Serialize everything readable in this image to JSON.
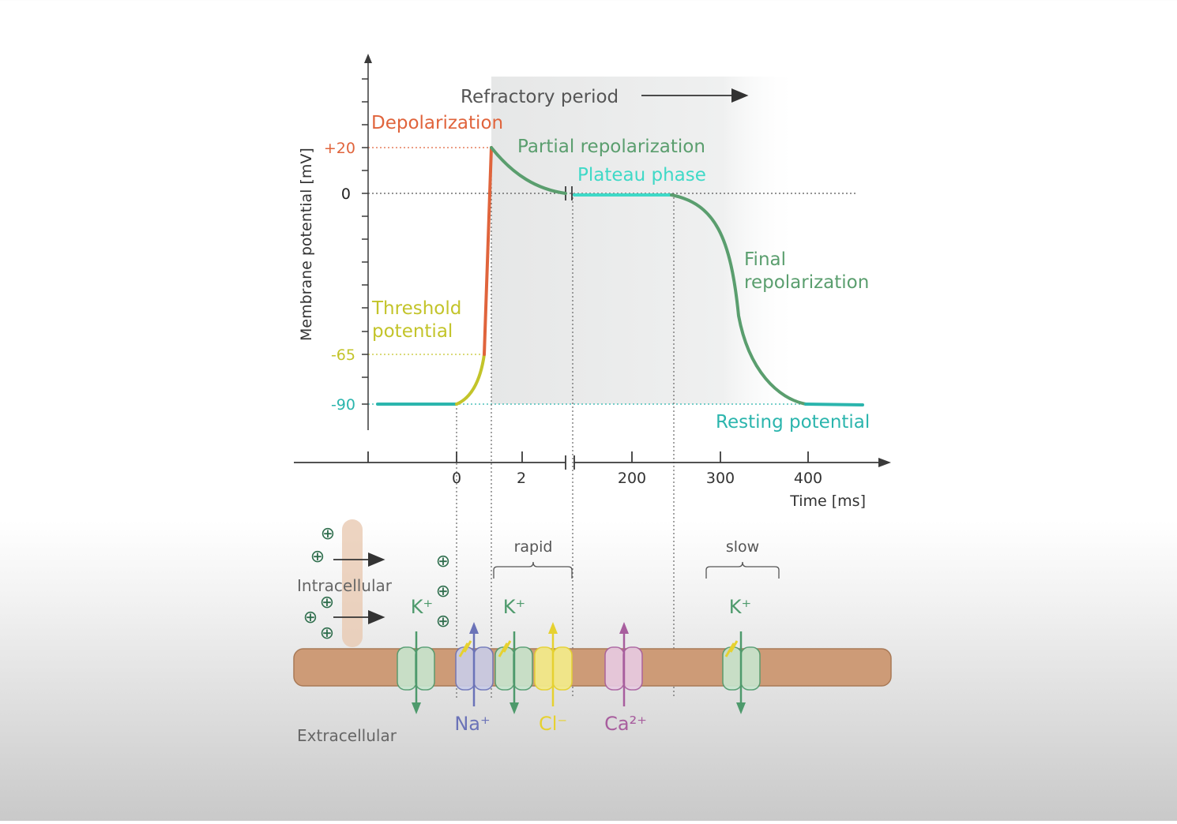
{
  "colors": {
    "depolarization": "#e0643c",
    "threshold": "#c3c42a",
    "repolarization": "#5a9e6e",
    "plateau": "#3fd9c7",
    "resting": "#2bb5ad",
    "axis": "#3a3a3a",
    "refractory_shade": "#e9eaea",
    "membrane": "#cd9b77",
    "na": "#6b73b8",
    "cl": "#e6d130",
    "ca": "#a85e9e",
    "k": "#4e9a6c"
  },
  "y_axis": {
    "label": "Membrane potential  [mV]",
    "ticks": [
      {
        "text": "+20",
        "color": "#e0643c"
      },
      {
        "text": "0",
        "color": "#222222"
      },
      {
        "text": "-65",
        "color": "#c3c42a"
      },
      {
        "text": "-90",
        "color": "#2bb5ad"
      }
    ]
  },
  "x_axis": {
    "label": "Time [ms]",
    "ticks": [
      "0",
      "2",
      "200",
      "300",
      "400"
    ]
  },
  "phases": {
    "refractory": "Refractory period",
    "depolarization": "Depolarization",
    "partial_repolarization": "Partial repolarization",
    "plateau": "Plateau phase",
    "final_line1": "Final",
    "final_line2": "repolarization",
    "threshold_line1": "Threshold",
    "threshold_line2": "potential",
    "resting": "Resting potential"
  },
  "membrane": {
    "intracellular": "Intracellular",
    "extracellular": "Extracellular",
    "rapid": "rapid",
    "slow": "slow",
    "ions": {
      "k1": "K⁺",
      "k2": "K⁺",
      "k3": "K⁺",
      "na": "Na⁺",
      "cl": "Cl⁻",
      "ca": "Ca²⁺"
    },
    "charge_symbol": "⊕"
  }
}
